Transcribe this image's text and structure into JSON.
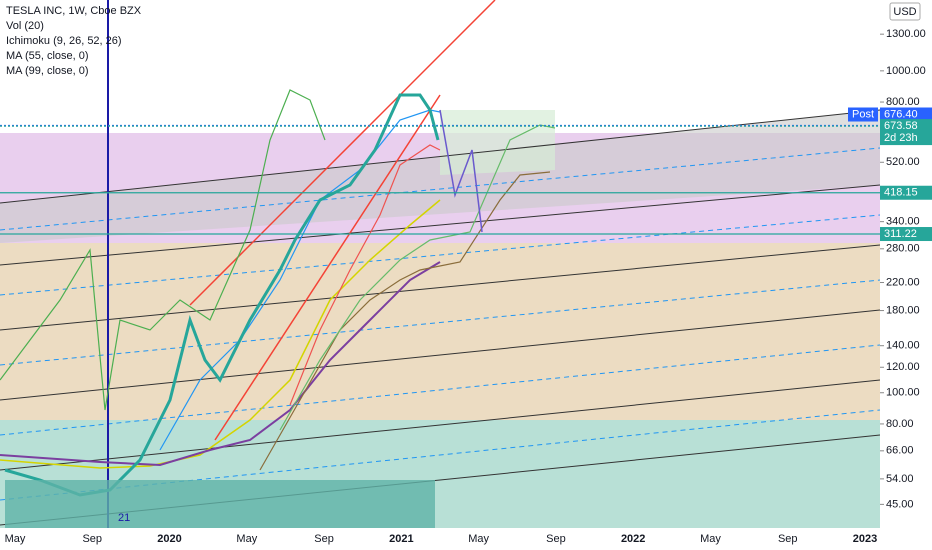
{
  "chart_data": {
    "type": "candlestick",
    "legend": [
      "TESLA INC, 1W, Cboe BZX",
      "Vol (20)",
      "Ichimoku (9, 26, 52, 26)",
      "MA (55, close, 0)",
      "MA (99, close, 0)"
    ],
    "currency": "USD",
    "log_scale": true,
    "ylim": [
      38,
      1660
    ],
    "yticks": [
      {
        "value": 1300,
        "label": "1300.00"
      },
      {
        "value": 1000,
        "label": "1000.00"
      },
      {
        "value": 800,
        "label": "800.00"
      },
      {
        "value": 520,
        "label": "520.00"
      },
      {
        "value": 340,
        "label": "340.00"
      },
      {
        "value": 280,
        "label": "280.00"
      },
      {
        "value": 220,
        "label": "220.00"
      },
      {
        "value": 180,
        "label": "180.00"
      },
      {
        "value": 140,
        "label": "140.00"
      },
      {
        "value": 120,
        "label": "120.00"
      },
      {
        "value": 100,
        "label": "100.00"
      },
      {
        "value": 80,
        "label": "80.00"
      },
      {
        "value": 66,
        "label": "66.00"
      },
      {
        "value": 54,
        "label": "54.00"
      },
      {
        "value": 45,
        "label": "45.00"
      }
    ],
    "categories": [
      "May",
      "Sep",
      "2020",
      "May",
      "Sep",
      "2021",
      "May",
      "Sep",
      "2022",
      "May",
      "Sep",
      "2023"
    ],
    "price_tags": [
      {
        "value": 676.4,
        "label": "676.40",
        "tag": "Post",
        "color": "#2962ff"
      },
      {
        "value": 673.58,
        "label": "673.58",
        "tag": "2d 23h",
        "color": "#26a69a"
      },
      {
        "value": 418.15,
        "label": "418.15",
        "color": "#26a69a"
      },
      {
        "value": 311.22,
        "label": "311.22",
        "color": "#26a69a"
      }
    ],
    "marker_label": "21"
  }
}
